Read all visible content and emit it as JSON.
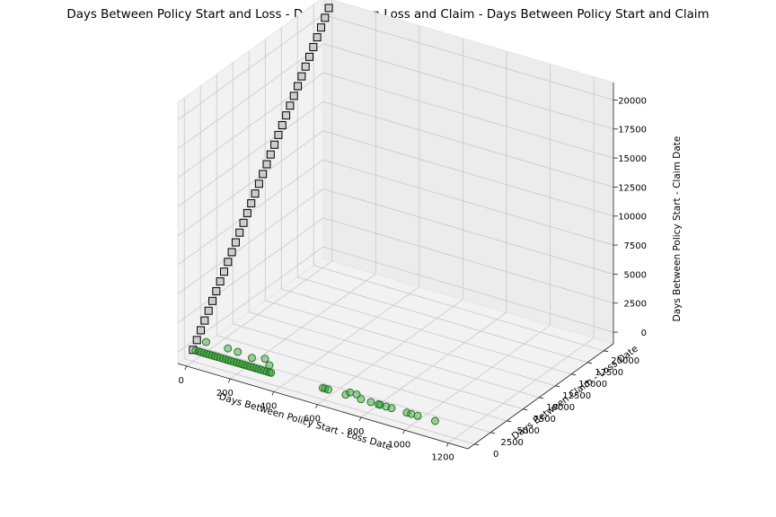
{
  "title": "Days Between Policy Start and Loss - Days Between Loss and Claim - Days Between Policy Start and Claim",
  "chart_data": {
    "type": "scatter",
    "projection": "3d",
    "title": "Days Between Policy Start and Loss - Days Between Loss and Claim - Days Between Policy Start and Claim",
    "xlabel": "Days Between Policy Start - Loss Date",
    "ylabel": "Days Between Claim - Loss Date",
    "zlabel": "Days Between Policy Start - Claim Date",
    "xlim": [
      -40,
      1290
    ],
    "ylim": [
      -1000,
      21500
    ],
    "zlim": [
      -1000,
      21500
    ],
    "xticks": [
      "0",
      "200",
      "400",
      "600",
      "800",
      "1000",
      "1200"
    ],
    "yticks": [
      "0",
      "2500",
      "5000",
      "7500",
      "10000",
      "12500",
      "15000",
      "17500",
      "20000"
    ],
    "zticks": [
      "0",
      "2500",
      "5000",
      "7500",
      "10000",
      "12500",
      "15000",
      "17500",
      "20000"
    ],
    "grid": true,
    "series": [
      {
        "marker": "circle",
        "color": "#2ca02c",
        "opacity": 0.45,
        "points": [
          [
            12,
            0,
            0
          ],
          [
            25,
            0,
            0
          ],
          [
            38,
            0,
            0
          ],
          [
            50,
            0,
            0
          ],
          [
            62,
            0,
            0
          ],
          [
            75,
            0,
            0
          ],
          [
            88,
            0,
            0
          ],
          [
            100,
            0,
            0
          ],
          [
            112,
            0,
            0
          ],
          [
            125,
            0,
            0
          ],
          [
            138,
            0,
            0
          ],
          [
            150,
            0,
            0
          ],
          [
            162,
            0,
            0
          ],
          [
            175,
            0,
            0
          ],
          [
            188,
            0,
            0
          ],
          [
            200,
            0,
            0
          ],
          [
            212,
            0,
            0
          ],
          [
            225,
            0,
            0
          ],
          [
            238,
            0,
            0
          ],
          [
            250,
            0,
            0
          ],
          [
            262,
            0,
            0
          ],
          [
            275,
            0,
            0
          ],
          [
            288,
            0,
            0
          ],
          [
            300,
            0,
            0
          ],
          [
            312,
            0,
            0
          ],
          [
            325,
            0,
            0
          ],
          [
            338,
            0,
            0
          ],
          [
            350,
            0,
            0
          ],
          [
            358,
            0,
            0
          ],
          [
            60,
            0,
            1000
          ],
          [
            160,
            0,
            1000
          ],
          [
            205,
            0,
            950
          ],
          [
            270,
            0,
            800
          ],
          [
            330,
            0,
            1050
          ],
          [
            350,
            0,
            600
          ],
          [
            595,
            0,
            0
          ],
          [
            605,
            0,
            0
          ],
          [
            620,
            0,
            0
          ],
          [
            700,
            0,
            0
          ],
          [
            720,
            0,
            300
          ],
          [
            750,
            0,
            300
          ],
          [
            770,
            0,
            0
          ],
          [
            815,
            0,
            0
          ],
          [
            850,
            0,
            0
          ],
          [
            858,
            0,
            0
          ],
          [
            885,
            0,
            0
          ],
          [
            910,
            0,
            0
          ],
          [
            980,
            0,
            0
          ],
          [
            1000,
            0,
            0
          ],
          [
            1030,
            0,
            0
          ],
          [
            1110,
            0,
            0
          ]
        ]
      },
      {
        "marker": "square",
        "color": "#c8c8c8",
        "opacity": 0.85,
        "points": [
          [
            0,
            0,
            0
          ],
          [
            0,
            600,
            600
          ],
          [
            0,
            1200,
            1200
          ],
          [
            0,
            1800,
            1800
          ],
          [
            0,
            2400,
            2400
          ],
          [
            0,
            3000,
            3000
          ],
          [
            0,
            3600,
            3600
          ],
          [
            0,
            4200,
            4200
          ],
          [
            0,
            4800,
            4800
          ],
          [
            0,
            5400,
            5400
          ],
          [
            0,
            6000,
            6000
          ],
          [
            0,
            6600,
            6600
          ],
          [
            0,
            7200,
            7200
          ],
          [
            0,
            7800,
            7800
          ],
          [
            0,
            8400,
            8400
          ],
          [
            0,
            9000,
            9000
          ],
          [
            0,
            9600,
            9600
          ],
          [
            0,
            10200,
            10200
          ],
          [
            0,
            10800,
            10800
          ],
          [
            0,
            11400,
            11400
          ],
          [
            0,
            12000,
            12000
          ],
          [
            0,
            12600,
            12600
          ],
          [
            0,
            13200,
            13200
          ],
          [
            0,
            13800,
            13800
          ],
          [
            0,
            14400,
            14400
          ],
          [
            0,
            15000,
            15000
          ],
          [
            0,
            15600,
            15600
          ],
          [
            0,
            16200,
            16200
          ],
          [
            0,
            16800,
            16800
          ],
          [
            0,
            17400,
            17400
          ],
          [
            0,
            18000,
            18000
          ],
          [
            0,
            18600,
            18600
          ],
          [
            0,
            19200,
            19200
          ],
          [
            0,
            19800,
            19800
          ],
          [
            0,
            20400,
            20400
          ],
          [
            0,
            21000,
            21000
          ]
        ]
      }
    ]
  }
}
